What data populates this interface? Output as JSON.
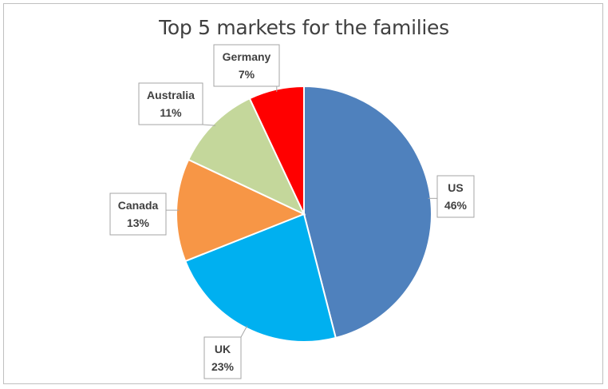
{
  "chart_data": {
    "type": "pie",
    "title": "Top 5 markets for the families",
    "categories": [
      "US",
      "UK",
      "Canada",
      "Australia",
      "Germany"
    ],
    "values": [
      46,
      23,
      13,
      11,
      7
    ],
    "value_labels": [
      "46%",
      "23%",
      "13%",
      "11%",
      "7%"
    ],
    "colors": [
      "#4f81bd",
      "#00b0f0",
      "#f79646",
      "#c4d79b",
      "#ff0000"
    ],
    "legend": "none",
    "data_labels": "callouts"
  }
}
